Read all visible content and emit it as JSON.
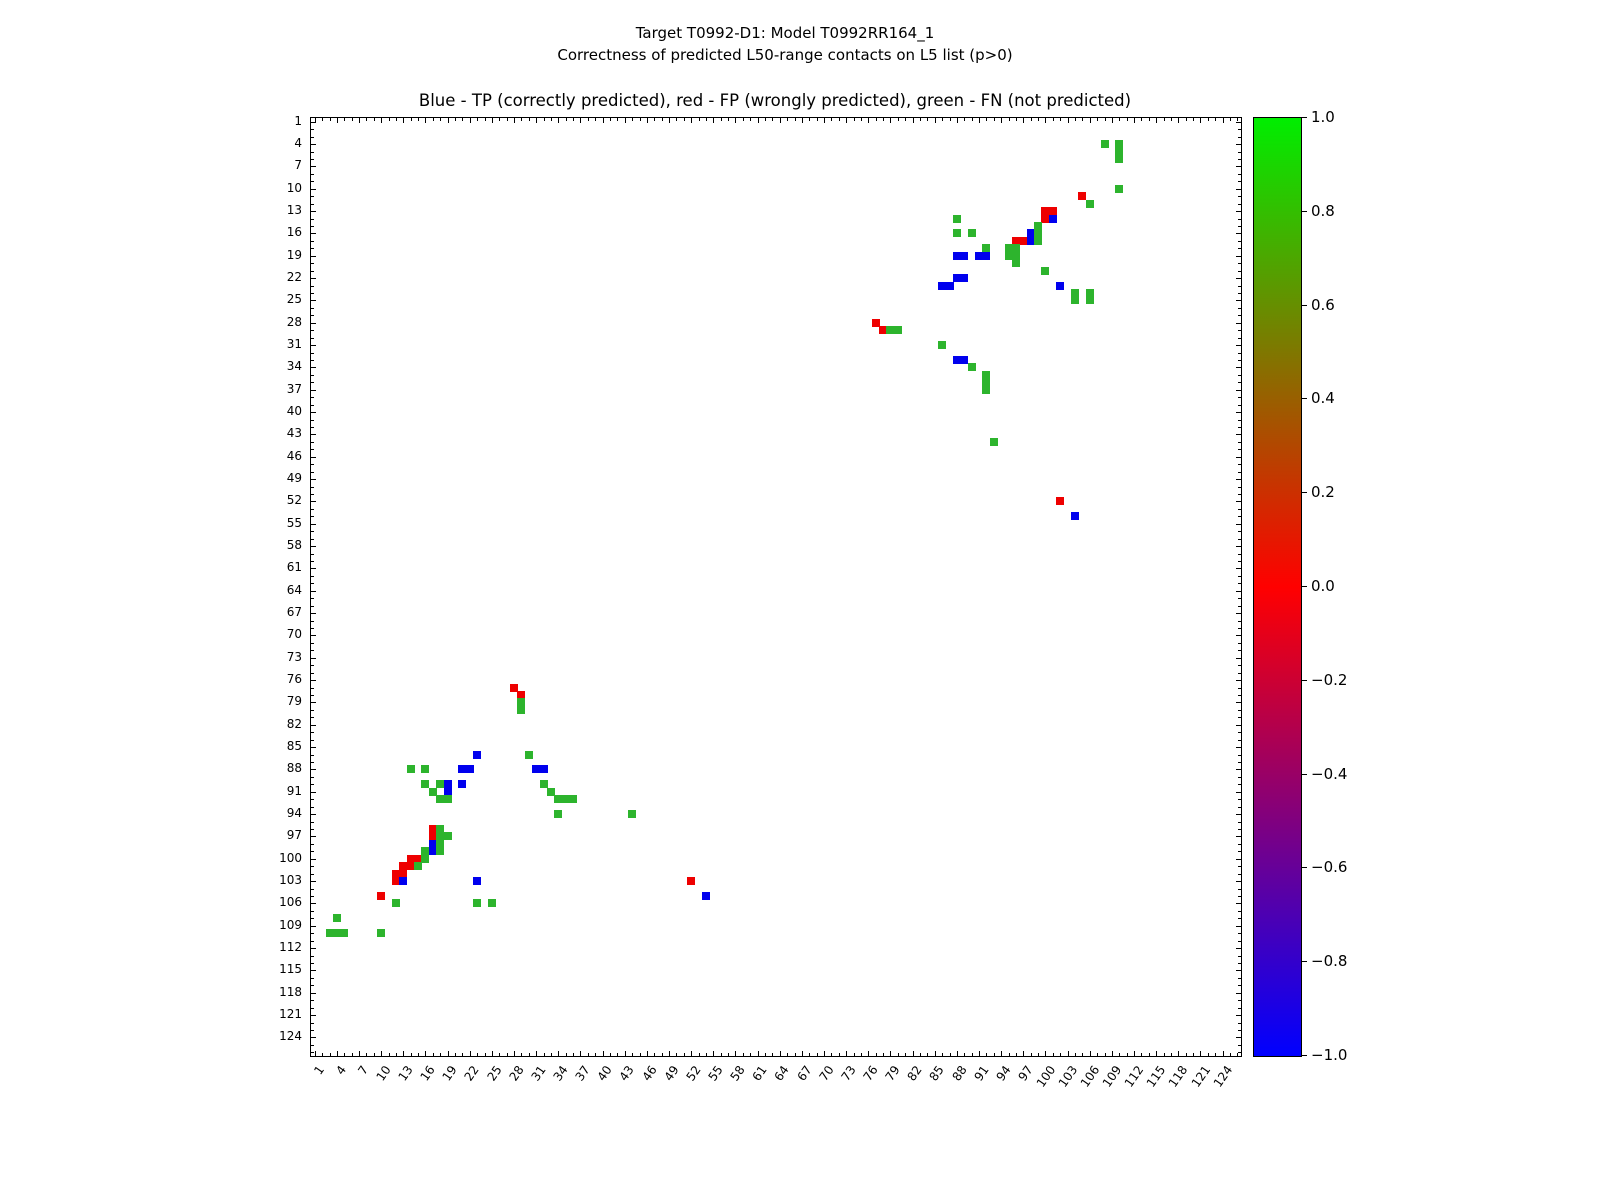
{
  "header": {
    "line1": "Target T0992-D1: Model T0992RR164_1",
    "line2": "Correctness of predicted L50-range contacts on L5 list (p>0)"
  },
  "chart_data": {
    "type": "scatter",
    "title": "Blue - TP (correctly predicted), red - FP (wrongly predicted), green - FN (not predicted)",
    "xlabel": "",
    "ylabel": "",
    "x_range": [
      1,
      126
    ],
    "y_range": [
      1,
      126
    ],
    "y_axis_inverted": true,
    "grid": false,
    "x_tick_labels": [
      1,
      4,
      7,
      10,
      13,
      16,
      19,
      22,
      25,
      28,
      31,
      34,
      37,
      40,
      43,
      46,
      49,
      52,
      55,
      58,
      61,
      64,
      67,
      70,
      73,
      76,
      79,
      82,
      85,
      88,
      91,
      94,
      97,
      100,
      103,
      106,
      109,
      112,
      115,
      118,
      121,
      124
    ],
    "y_tick_labels": [
      1,
      4,
      7,
      10,
      13,
      16,
      19,
      22,
      25,
      28,
      31,
      34,
      37,
      40,
      43,
      46,
      49,
      52,
      55,
      58,
      61,
      64,
      67,
      70,
      73,
      76,
      79,
      82,
      85,
      88,
      91,
      94,
      97,
      100,
      103,
      106,
      109,
      112,
      115,
      118,
      121,
      124
    ],
    "colors": {
      "tp": "#0000ee",
      "fp": "#ee0000",
      "fn": "#2db42d"
    },
    "colorbar": {
      "range": [
        -1.0,
        1.0
      ],
      "tick_labels": [
        "1.0",
        "0.8",
        "0.6",
        "0.4",
        "0.2",
        "0.0",
        "−0.2",
        "−0.4",
        "−0.6",
        "−0.8",
        "−1.0"
      ],
      "gradient_top": "#00ee00",
      "gradient_middle": "#ff0000",
      "gradient_bottom": "#0000ff"
    },
    "points": [
      [
        108,
        4,
        "fn"
      ],
      [
        110,
        4,
        "fn"
      ],
      [
        110,
        5,
        "fn"
      ],
      [
        110,
        6,
        "fn"
      ],
      [
        110,
        10,
        "fn"
      ],
      [
        105,
        11,
        "fp"
      ],
      [
        106,
        12,
        "fn"
      ],
      [
        100,
        13,
        "fp"
      ],
      [
        101,
        13,
        "fp"
      ],
      [
        100,
        14,
        "fp"
      ],
      [
        101,
        14,
        "tp"
      ],
      [
        88,
        14,
        "fn"
      ],
      [
        99,
        15,
        "fn"
      ],
      [
        88,
        16,
        "fn"
      ],
      [
        90,
        16,
        "fn"
      ],
      [
        98,
        16,
        "tp"
      ],
      [
        99,
        16,
        "fn"
      ],
      [
        96,
        17,
        "fp"
      ],
      [
        97,
        17,
        "fp"
      ],
      [
        98,
        17,
        "tp"
      ],
      [
        99,
        17,
        "fn"
      ],
      [
        92,
        18,
        "fn"
      ],
      [
        95,
        18,
        "fn"
      ],
      [
        96,
        18,
        "fn"
      ],
      [
        88,
        19,
        "tp"
      ],
      [
        89,
        19,
        "tp"
      ],
      [
        91,
        19,
        "tp"
      ],
      [
        92,
        19,
        "tp"
      ],
      [
        95,
        19,
        "fn"
      ],
      [
        96,
        19,
        "fn"
      ],
      [
        96,
        20,
        "fn"
      ],
      [
        100,
        21,
        "fn"
      ],
      [
        88,
        22,
        "tp"
      ],
      [
        89,
        22,
        "tp"
      ],
      [
        86,
        23,
        "tp"
      ],
      [
        87,
        23,
        "tp"
      ],
      [
        102,
        23,
        "tp"
      ],
      [
        104,
        24,
        "fn"
      ],
      [
        106,
        24,
        "fn"
      ],
      [
        104,
        25,
        "fn"
      ],
      [
        106,
        25,
        "fn"
      ],
      [
        77,
        28,
        "fp"
      ],
      [
        78,
        29,
        "fp"
      ],
      [
        79,
        29,
        "fn"
      ],
      [
        80,
        29,
        "fn"
      ],
      [
        86,
        31,
        "fn"
      ],
      [
        88,
        33,
        "tp"
      ],
      [
        89,
        33,
        "tp"
      ],
      [
        90,
        34,
        "fn"
      ],
      [
        92,
        35,
        "fn"
      ],
      [
        92,
        36,
        "fn"
      ],
      [
        92,
        37,
        "fn"
      ],
      [
        93,
        44,
        "fn"
      ],
      [
        102,
        52,
        "fp"
      ],
      [
        104,
        54,
        "tp"
      ],
      [
        28,
        77,
        "fp"
      ],
      [
        29,
        78,
        "fp"
      ],
      [
        29,
        79,
        "fn"
      ],
      [
        29,
        80,
        "fn"
      ],
      [
        23,
        86,
        "tp"
      ],
      [
        30,
        86,
        "fn"
      ],
      [
        14,
        88,
        "fn"
      ],
      [
        16,
        88,
        "fn"
      ],
      [
        21,
        88,
        "tp"
      ],
      [
        22,
        88,
        "tp"
      ],
      [
        31,
        88,
        "tp"
      ],
      [
        32,
        88,
        "tp"
      ],
      [
        16,
        90,
        "fn"
      ],
      [
        18,
        90,
        "fn"
      ],
      [
        19,
        90,
        "tp"
      ],
      [
        21,
        90,
        "tp"
      ],
      [
        32,
        90,
        "fn"
      ],
      [
        17,
        91,
        "fn"
      ],
      [
        19,
        91,
        "tp"
      ],
      [
        33,
        91,
        "fn"
      ],
      [
        18,
        92,
        "fn"
      ],
      [
        19,
        92,
        "fn"
      ],
      [
        34,
        92,
        "fn"
      ],
      [
        35,
        92,
        "fn"
      ],
      [
        36,
        92,
        "fn"
      ],
      [
        34,
        94,
        "fn"
      ],
      [
        44,
        94,
        "fn"
      ],
      [
        17,
        96,
        "fp"
      ],
      [
        18,
        96,
        "fn"
      ],
      [
        17,
        97,
        "fp"
      ],
      [
        18,
        97,
        "fn"
      ],
      [
        19,
        97,
        "fn"
      ],
      [
        17,
        98,
        "tp"
      ],
      [
        18,
        98,
        "fn"
      ],
      [
        16,
        99,
        "fn"
      ],
      [
        17,
        99,
        "tp"
      ],
      [
        18,
        99,
        "fn"
      ],
      [
        14,
        100,
        "fp"
      ],
      [
        15,
        100,
        "fp"
      ],
      [
        16,
        100,
        "fn"
      ],
      [
        13,
        101,
        "fp"
      ],
      [
        14,
        101,
        "fp"
      ],
      [
        15,
        101,
        "fn"
      ],
      [
        12,
        102,
        "fp"
      ],
      [
        13,
        102,
        "fp"
      ],
      [
        12,
        103,
        "fp"
      ],
      [
        13,
        103,
        "tp"
      ],
      [
        23,
        103,
        "tp"
      ],
      [
        52,
        103,
        "fp"
      ],
      [
        10,
        105,
        "fp"
      ],
      [
        54,
        105,
        "tp"
      ],
      [
        12,
        106,
        "fn"
      ],
      [
        23,
        106,
        "fn"
      ],
      [
        25,
        106,
        "fn"
      ],
      [
        4,
        108,
        "fn"
      ],
      [
        3,
        110,
        "fn"
      ],
      [
        4,
        110,
        "fn"
      ],
      [
        5,
        110,
        "fn"
      ],
      [
        10,
        110,
        "fn"
      ]
    ]
  }
}
